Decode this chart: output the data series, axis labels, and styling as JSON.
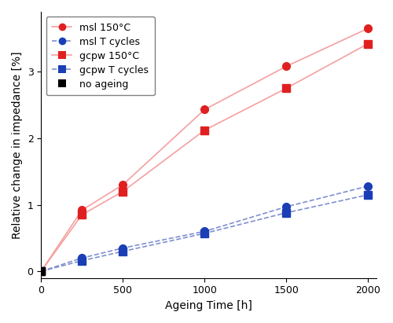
{
  "x": [
    0,
    250,
    500,
    1000,
    1500,
    2000
  ],
  "msl_150": [
    0,
    0.92,
    1.3,
    2.43,
    3.08,
    3.65
  ],
  "msl_Tcycles": [
    0,
    0.2,
    0.35,
    0.6,
    0.97,
    1.28
  ],
  "gcpw_150": [
    0,
    0.85,
    1.2,
    2.12,
    2.75,
    3.42
  ],
  "gcpw_Tcycles": [
    0,
    0.16,
    0.3,
    0.57,
    0.88,
    1.15
  ],
  "no_ageing": [
    0
  ],
  "no_ageing_x": [
    0
  ],
  "color_red": "#e02020",
  "color_blue": "#1a3eb5",
  "color_red_light": "#f5a0a0",
  "color_blue_light": "#8090d0",
  "color_black": "#000000",
  "xlabel": "Ageing Time [h]",
  "ylabel": "Relative change in impedance [%]",
  "xlim": [
    0,
    2050
  ],
  "ylim": [
    -0.1,
    3.9
  ],
  "yticks": [
    0,
    1,
    2,
    3
  ],
  "xticks": [
    0,
    500,
    1000,
    1500,
    2000
  ],
  "legend_labels": [
    "msl 150°C",
    "msl T cycles",
    "gcpw 150°C",
    "gcpw T cycles",
    "no ageing"
  ],
  "figsize": [
    5.0,
    4.11
  ],
  "dpi": 100
}
